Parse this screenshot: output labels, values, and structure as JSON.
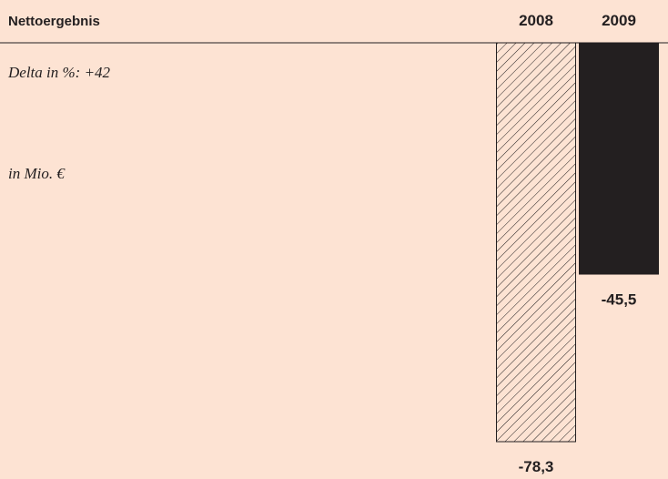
{
  "chart_data": {
    "type": "bar",
    "title": "Nettoergebnis",
    "subtitle": "Delta in %: +42",
    "unit": "in Mio. €",
    "categories": [
      "2008",
      "2009"
    ],
    "values": [
      -78.3,
      -45.5
    ],
    "value_labels": [
      "-78,3",
      "-45,5"
    ],
    "colors": [
      "#231f20",
      "#231f20"
    ],
    "hatch": [
      true,
      false
    ]
  }
}
